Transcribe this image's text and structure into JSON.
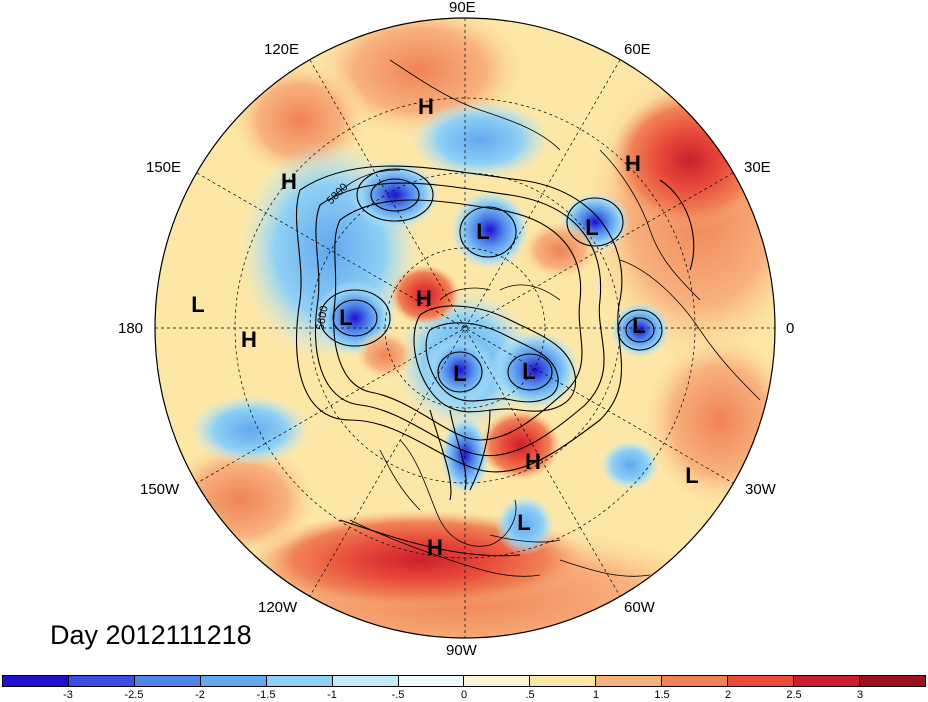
{
  "title": "Day 2012111218",
  "longitude_labels": {
    "lon_90E": "90E",
    "lon_120E": "120E",
    "lon_60E": "60E",
    "lon_150E": "150E",
    "lon_30E": "30E",
    "lon_180": "180",
    "lon_0": "0",
    "lon_150W": "150W",
    "lon_30W": "30W",
    "lon_120W": "120W",
    "lon_60W": "60W",
    "lon_90W": "90W"
  },
  "contour_labels": [
    "5800",
    "5600"
  ],
  "pressure_centers": [
    {
      "type": "H"
    },
    {
      "type": "H"
    },
    {
      "type": "H"
    },
    {
      "type": "H"
    },
    {
      "type": "H"
    },
    {
      "type": "H"
    },
    {
      "type": "H"
    },
    {
      "type": "L"
    },
    {
      "type": "L"
    },
    {
      "type": "L"
    },
    {
      "type": "L"
    },
    {
      "type": "L"
    },
    {
      "type": "L"
    },
    {
      "type": "L"
    },
    {
      "type": "L"
    },
    {
      "type": "L"
    }
  ],
  "colorbar": {
    "colors": [
      "#1f10d0",
      "#3a4ee6",
      "#4f86ea",
      "#62a8ee",
      "#8ed0f5",
      "#c3ecfb",
      "#f0fbfd",
      "#fdf6d4",
      "#fde7a6",
      "#f8b27e",
      "#f08356",
      "#e84a3a",
      "#cc1f2e",
      "#a0101c"
    ],
    "ticks": [
      "-3",
      "-2.5",
      "-2",
      "-1.5",
      "-1",
      "-.5",
      "0",
      ".5",
      "1",
      "1.5",
      "2",
      "2.5",
      "3"
    ]
  }
}
